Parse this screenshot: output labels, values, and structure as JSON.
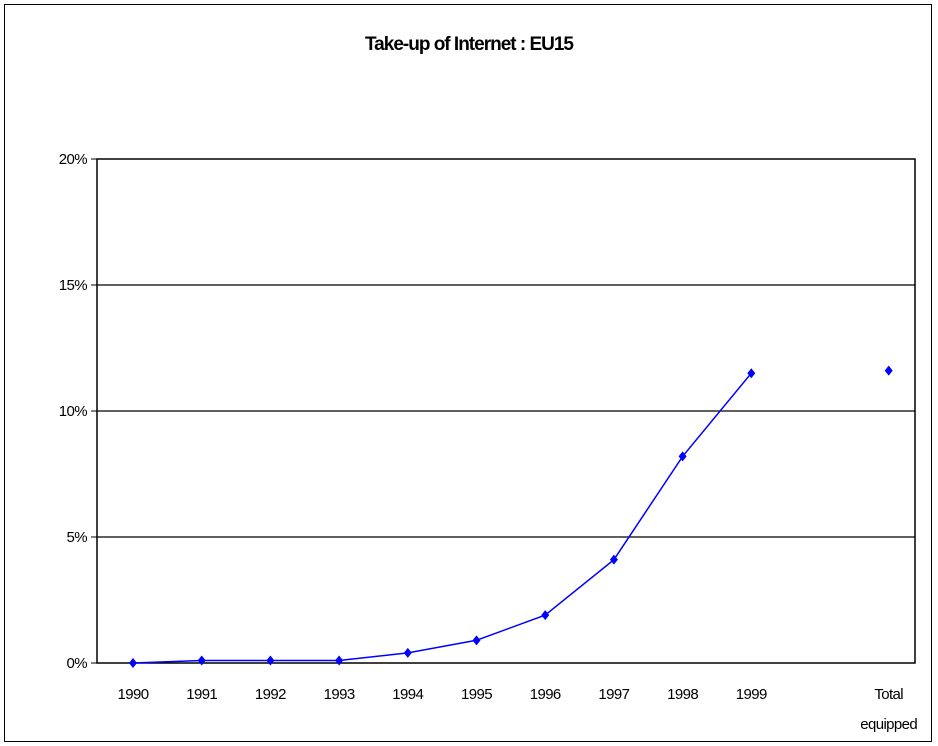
{
  "chart_data": {
    "type": "line",
    "title": "Take-up of Internet : EU15",
    "xlabel": "",
    "ylabel": "",
    "categories": [
      "1990",
      "1991",
      "1992",
      "1993",
      "1994",
      "1995",
      "1996",
      "1997",
      "1998",
      "1999",
      "Total equipped"
    ],
    "yticks": [
      "0%",
      "5%",
      "10%",
      "15%",
      "20%"
    ],
    "ylim": [
      0,
      20
    ],
    "grid": "horizontal",
    "legend": "none",
    "series": [
      {
        "color": "#0000ff",
        "values": [
          0.0,
          0.1,
          0.1,
          0.1,
          0.4,
          0.9,
          1.9,
          4.1,
          8.2,
          11.5,
          11.6
        ],
        "connected_until_index": 9
      }
    ]
  }
}
